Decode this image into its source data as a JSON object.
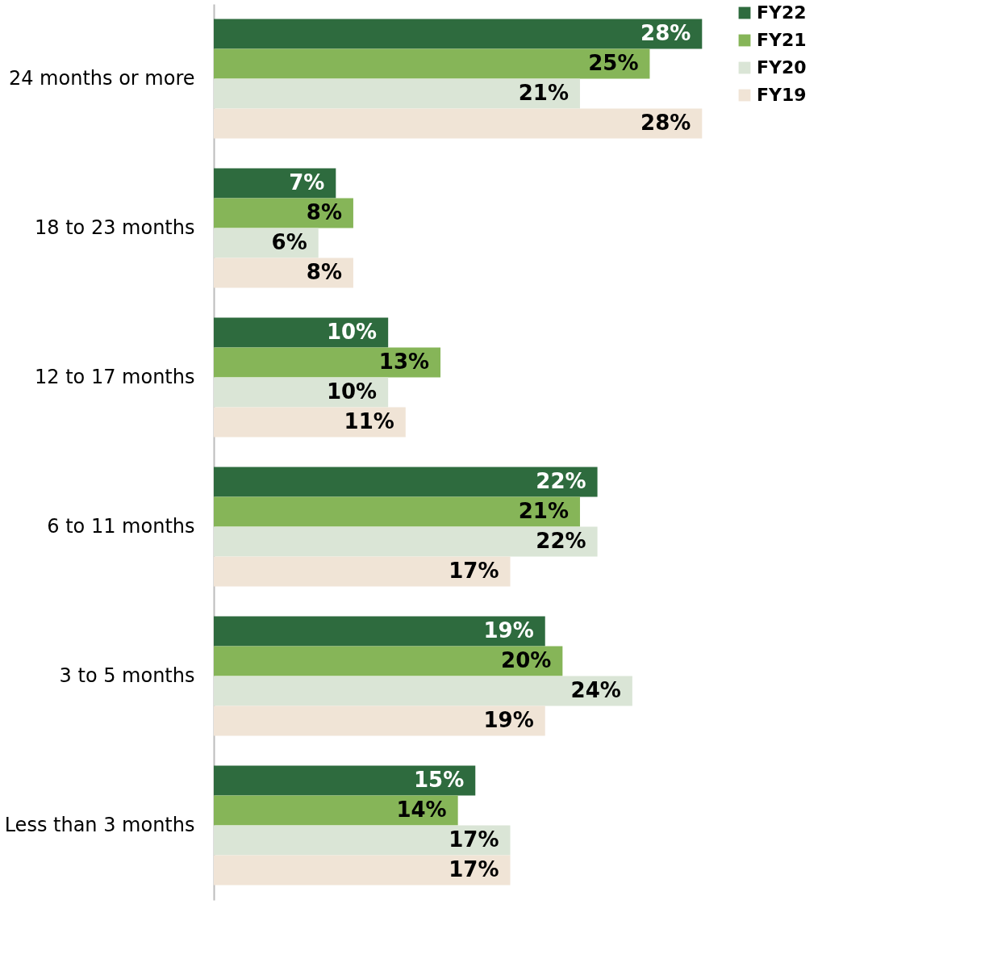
{
  "chart_data": {
    "type": "bar",
    "orientation": "horizontal",
    "data_labels": true,
    "legend": "top right",
    "xlim": [
      0,
      34
    ],
    "categories": [
      "24 months or more",
      "18 to 23 months",
      "12 to 17 months",
      "6 to 11 months",
      "3 to 5 months",
      "Less than 3 months"
    ],
    "series": [
      {
        "name": "FY22",
        "color": "#2e6b3e",
        "values": [
          28,
          7,
          10,
          22,
          19,
          15
        ],
        "value_labels": [
          "28%",
          "7%",
          "10%",
          "22%",
          "19%",
          "15%"
        ]
      },
      {
        "name": "FY21",
        "color": "#86b558",
        "values": [
          25,
          8,
          13,
          21,
          20,
          14
        ],
        "value_labels": [
          "25%",
          "8%",
          "13%",
          "21%",
          "20%",
          "14%"
        ]
      },
      {
        "name": "FY20",
        "color": "#dae5d6",
        "values": [
          21,
          6,
          10,
          22,
          24,
          17
        ],
        "value_labels": [
          "21%",
          "6%",
          "10%",
          "22%",
          "24%",
          "17%"
        ]
      },
      {
        "name": "FY19",
        "color": "#f0e4d6",
        "values": [
          28,
          8,
          11,
          17,
          19,
          17
        ],
        "value_labels": [
          "28%",
          "8%",
          "11%",
          "17%",
          "19%",
          "17%"
        ]
      }
    ]
  }
}
